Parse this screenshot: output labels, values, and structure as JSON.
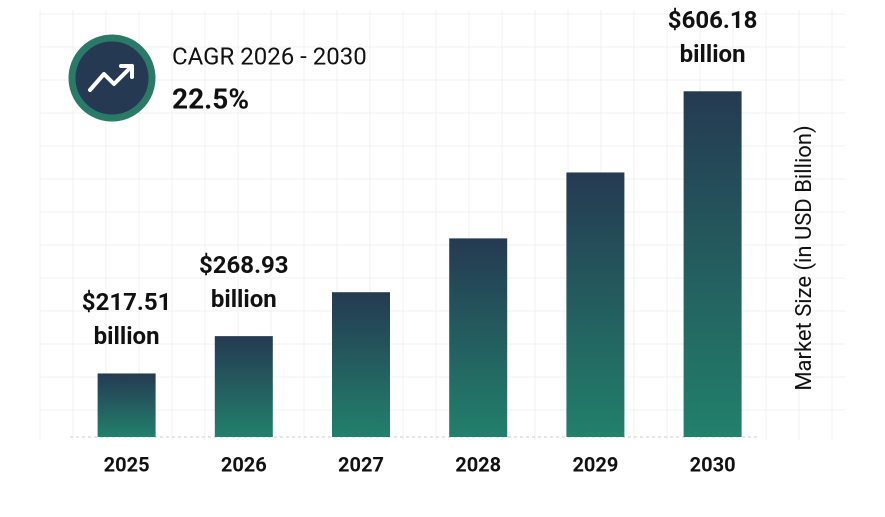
{
  "chart_data": {
    "type": "bar",
    "categories": [
      "2025",
      "2026",
      "2027",
      "2028",
      "2029",
      "2030"
    ],
    "values": [
      217.51,
      268.93,
      329.44,
      403.57,
      494.37,
      606.18
    ],
    "value_labels": [
      "$217.51 billion",
      "$268.93 billion",
      null,
      null,
      null,
      "$606.18 billion"
    ],
    "ylabel": "Market Size (in USD Billion)",
    "ylim": [
      130,
      630
    ],
    "gradient": [
      "#253a52",
      "#22806b"
    ],
    "annotation": {
      "label": "CAGR 2026 - 2030",
      "value": "22.5%"
    }
  }
}
